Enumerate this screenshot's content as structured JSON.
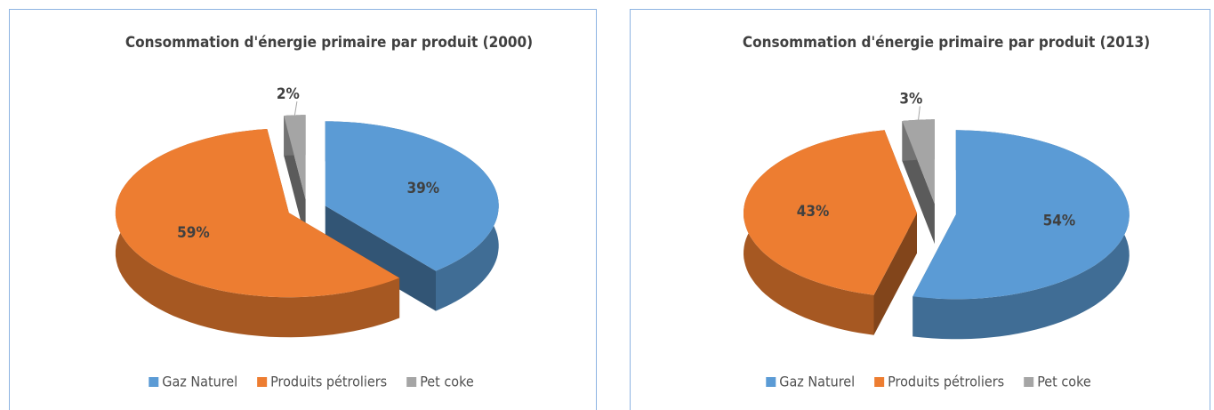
{
  "chart_data": [
    {
      "type": "pie3d",
      "title": "Consommation d'énergie primaire par produit (2000)",
      "categories": [
        "Gaz Naturel",
        "Produits pétroliers",
        "Pet coke"
      ],
      "values": [
        39,
        59,
        2
      ],
      "value_labels": [
        "39%",
        "59%",
        "2%"
      ],
      "colors": [
        "#5b9bd5",
        "#ed7d31",
        "#a5a5a5"
      ],
      "legend": "bottom"
    },
    {
      "type": "pie3d",
      "title": "Consommation d'énergie primaire par produit (2013)",
      "categories": [
        "Gaz Naturel",
        "Produits pétroliers",
        "Pet coke"
      ],
      "values": [
        54,
        43,
        3
      ],
      "value_labels": [
        "54%",
        "43%",
        "3%"
      ],
      "colors": [
        "#5b9bd5",
        "#ed7d31",
        "#a5a5a5"
      ],
      "legend": "bottom"
    }
  ]
}
